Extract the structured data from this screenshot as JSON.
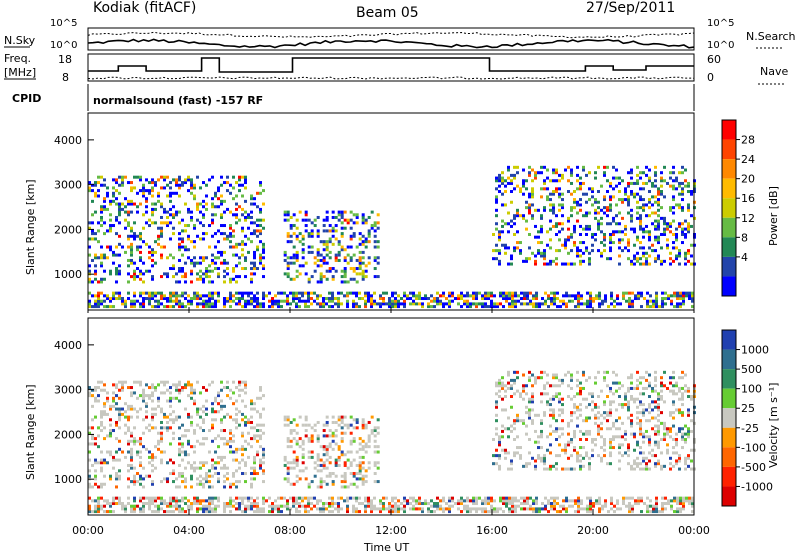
{
  "header": {
    "station": "Kodiak (fitACF)",
    "beam": "Beam 05",
    "date": "27/Sep/2011"
  },
  "noise_panel": {
    "left_label": "N.Sky",
    "right_label": "N.Search",
    "left_ticks": [
      "10^5",
      "10^0"
    ],
    "right_ticks": [
      "10^5",
      "10^0"
    ]
  },
  "freq_panel": {
    "left_label_1": "Freq.",
    "left_label_2": "[MHz]",
    "right_label": "Nave",
    "left_ticks": [
      "18",
      "8"
    ],
    "right_ticks": [
      "60",
      "0"
    ]
  },
  "cpid_panel": {
    "label": "CPID",
    "program": "normalsound (fast) -157 RF"
  },
  "x_axis": {
    "label": "Time UT",
    "ticks": [
      "00:00",
      "04:00",
      "08:00",
      "12:00",
      "16:00",
      "20:00",
      "00:00"
    ]
  },
  "y_axis": {
    "label": "Slant Range [km]",
    "ticks": [
      "4000",
      "3000",
      "2000",
      "1000"
    ]
  },
  "power_colorbar": {
    "label": "Power [dB]",
    "ticks": [
      "28",
      "24",
      "20",
      "16",
      "12",
      "8",
      "4"
    ],
    "colors": [
      "#ff0000",
      "#ff4400",
      "#ff8800",
      "#ffbb00",
      "#cccc00",
      "#66bb44",
      "#228855",
      "#2244aa",
      "#0000ff"
    ]
  },
  "velocity_colorbar": {
    "label": "Velocity [m s⁻¹]",
    "ticks": [
      "1000",
      "500",
      "100",
      "25",
      "-25",
      "-100",
      "-500",
      "-1000"
    ],
    "colors": [
      "#2040b0",
      "#2f6f8f",
      "#2f8f5f",
      "#66cc33",
      "#c8c8c0",
      "#ff9900",
      "#ff6600",
      "#ff2200",
      "#dd0000"
    ]
  },
  "chart_data": {
    "type": "heatmap",
    "x_range_hours": [
      0,
      24
    ],
    "y_range_km": [
      200,
      4600
    ],
    "panels": [
      "Power [dB]",
      "Velocity [m s⁻¹]"
    ],
    "echo_regions": [
      {
        "start": "00:00",
        "end": "07:00",
        "range_km": [
          800,
          3200
        ],
        "power_db": [
          4,
          24
        ]
      },
      {
        "start": "00:00",
        "end": "24:00",
        "range_km": [
          250,
          600
        ],
        "power_db": [
          4,
          28
        ]
      },
      {
        "start": "07:45",
        "end": "11:30",
        "range_km": [
          800,
          2400
        ],
        "power_db": [
          4,
          16
        ]
      },
      {
        "start": "16:00",
        "end": "24:00",
        "range_km": [
          1200,
          3400
        ],
        "power_db": [
          4,
          28
        ]
      }
    ]
  }
}
